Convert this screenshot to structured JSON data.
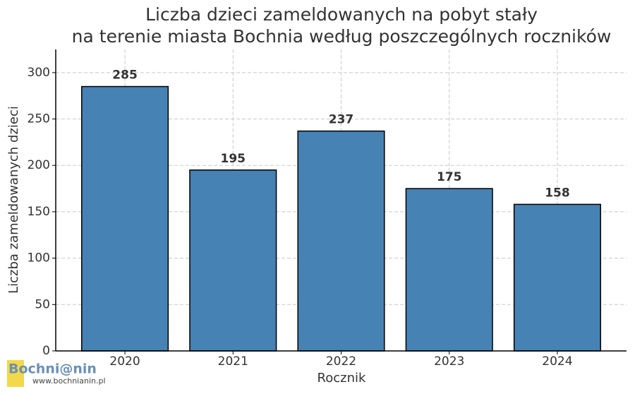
{
  "chart_data": {
    "type": "bar",
    "title": [
      "Liczba dzieci zameldowanych na pobyt stały",
      "na terenie miasta Bochnia według poszczególnych roczników"
    ],
    "x_label": "Rocznik",
    "y_label": "Liczba zameldowanych dzieci",
    "categories": [
      "2020",
      "2021",
      "2022",
      "2023",
      "2024"
    ],
    "values": [
      285,
      195,
      237,
      175,
      158
    ],
    "color": "#4682b4",
    "edge_color": "#000000",
    "ylim": [
      0,
      325
    ],
    "yticks": [
      0,
      50,
      100,
      150,
      200,
      250,
      300
    ],
    "grid": true
  },
  "watermark": {
    "name": "Bochni@nin",
    "url": "www.bochnianin.pl"
  }
}
